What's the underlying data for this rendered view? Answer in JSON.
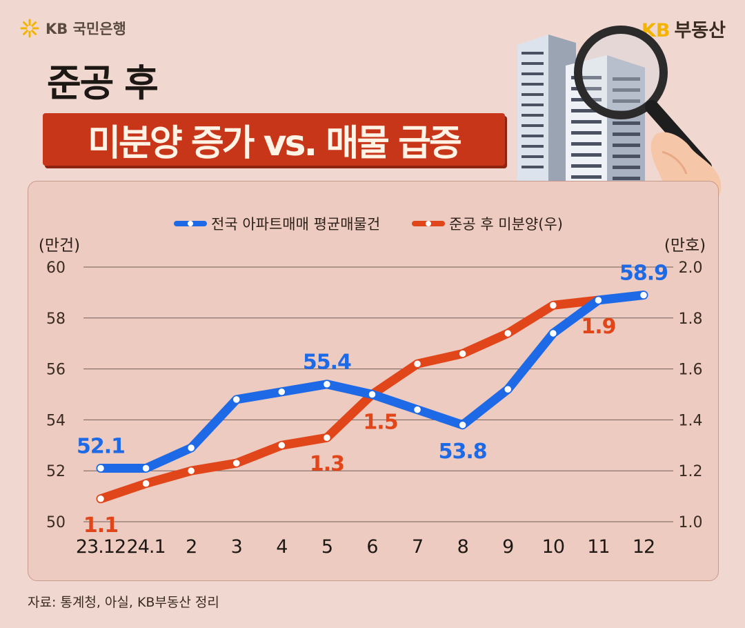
{
  "header": {
    "bank_logo_text": "KB 국민은행",
    "brand_kb": "KB",
    "brand_name": "부동산",
    "title_line1": "준공 후",
    "title_line2": "미분양 증가 vs. 매물 급증"
  },
  "source_text": "자료: 통계청, 아실, KB부동산 정리",
  "colors": {
    "listings": "#1e6ae6",
    "unsold": "#e1461b",
    "title_bg": "#c8361a",
    "background": "#f0d7cf"
  },
  "chart_data": {
    "type": "line",
    "categories": [
      "23.12",
      "24.1",
      "2",
      "3",
      "4",
      "5",
      "6",
      "7",
      "8",
      "9",
      "10",
      "11",
      "12"
    ],
    "left_axis": {
      "unit": "(만건)",
      "ylim": [
        50,
        60
      ],
      "ticks": [
        "50",
        "52",
        "54",
        "56",
        "58",
        "60"
      ]
    },
    "right_axis": {
      "unit": "(만호)",
      "ylim": [
        1.0,
        2.0
      ],
      "ticks": [
        "1.0",
        "1.2",
        "1.4",
        "1.6",
        "1.8",
        "2.0"
      ]
    },
    "grid": true,
    "legend": "top-center",
    "series": [
      {
        "name": "전국 아파트매매 평균매물건",
        "axis": "left",
        "color_key": "listings",
        "values": [
          52.1,
          52.1,
          52.9,
          54.8,
          55.1,
          55.4,
          55.0,
          54.4,
          53.8,
          55.2,
          57.4,
          58.7,
          58.9
        ],
        "labels": [
          {
            "index": 0,
            "text": "52.1",
            "pos": "above"
          },
          {
            "index": 5,
            "text": "55.4",
            "pos": "above"
          },
          {
            "index": 8,
            "text": "53.8",
            "pos": "below"
          },
          {
            "index": 12,
            "text": "58.9",
            "pos": "above"
          }
        ]
      },
      {
        "name": "준공 후 미분양(우)",
        "axis": "right",
        "color_key": "unsold",
        "values": [
          1.09,
          1.15,
          1.2,
          1.23,
          1.3,
          1.33,
          1.5,
          1.62,
          1.66,
          1.74,
          1.85,
          1.87,
          null
        ],
        "labels": [
          {
            "index": 0,
            "text": "1.1",
            "pos": "below"
          },
          {
            "index": 5,
            "text": "1.3",
            "pos": "below"
          },
          {
            "index": 6,
            "text": "1.5",
            "pos": "below-right"
          },
          {
            "index": 11,
            "text": "1.9",
            "pos": "below"
          }
        ]
      }
    ]
  }
}
